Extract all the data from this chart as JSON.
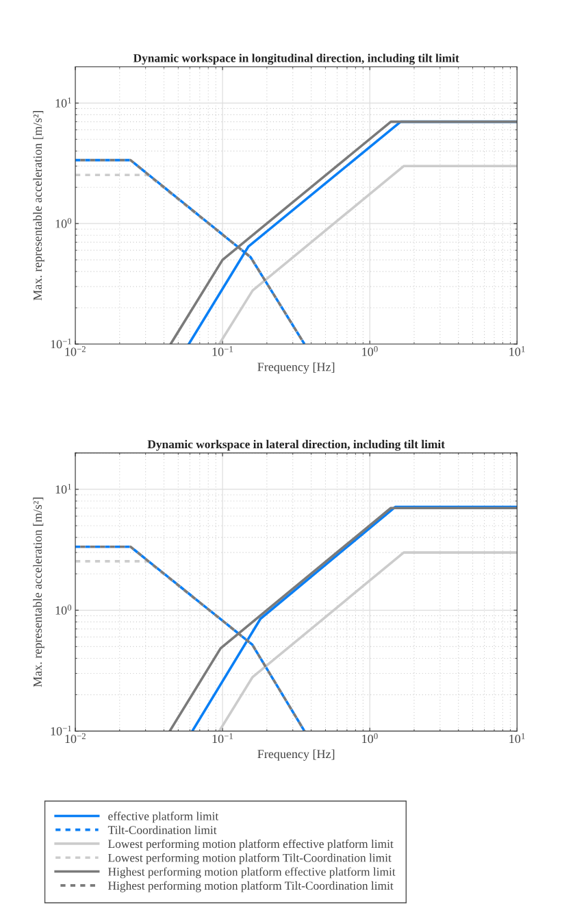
{
  "chart_data": [
    {
      "type": "line",
      "title": "Dynamic workspace in longitudinal direction, including tilt limit",
      "xlabel": "Frequency [Hz]",
      "ylabel": "Max. representable acceleration [m/s²]",
      "log": "xy",
      "grid": true,
      "xlim": [
        0.01,
        10
      ],
      "ylim": [
        0.1,
        20
      ],
      "xticks": [
        {
          "value": 0.01,
          "label": "10$^{−2}$"
        },
        {
          "value": 0.1,
          "label": "10$^{−1}$"
        },
        {
          "value": 1,
          "label": "10$^{0}$"
        },
        {
          "value": 10,
          "label": "10$^{1}$"
        }
      ],
      "yticks": [
        {
          "value": 0.1,
          "label": "10$^{−1}$"
        },
        {
          "value": 1,
          "label": "10$^{0}$"
        },
        {
          "value": 10,
          "label": "10$^{1}$"
        }
      ],
      "series": [
        {
          "color": "#0a7ff5",
          "line_style": "solid",
          "x": [
            0.059,
            0.15,
            1.62,
            10
          ],
          "values": [
            0.1,
            0.646,
            7,
            7
          ]
        },
        {
          "color": "#0a7ff5",
          "line_style": "dashed",
          "x": [
            0.01,
            0.0237,
            0.155,
            0.36
          ],
          "values": [
            3.36,
            3.36,
            0.526,
            0.1
          ]
        },
        {
          "color": "#cccccc",
          "line_style": "solid",
          "x": [
            0.095,
            0.16,
            1.7,
            10
          ],
          "values": [
            0.1,
            0.278,
            3,
            3
          ]
        },
        {
          "color": "#cccccc",
          "line_style": "dashed",
          "x": [
            0.01,
            0.031,
            0.155,
            0.36
          ],
          "values": [
            2.53,
            2.53,
            0.526,
            0.1
          ]
        },
        {
          "color": "#7a7a7a",
          "line_style": "solid",
          "x": [
            0.0444,
            0.1,
            1.39,
            10
          ],
          "values": [
            0.1,
            0.5,
            7,
            7
          ]
        },
        {
          "color": "#7a7a7a",
          "line_style": "dashed",
          "x": [
            0.01,
            0.0237,
            0.155,
            0.36
          ],
          "values": [
            3.36,
            3.36,
            0.526,
            0.1
          ]
        }
      ]
    },
    {
      "type": "line",
      "title": "Dynamic workspace in lateral direction, including tilt limit",
      "xlabel": "Frequency [Hz]",
      "ylabel": "Max. representable acceleration [m/s²]",
      "log": "xy",
      "grid": true,
      "legend": "bottom",
      "xlim": [
        0.01,
        10
      ],
      "ylim": [
        0.1,
        20
      ],
      "xticks": [
        {
          "value": 0.01,
          "label": "10$^{−2}$"
        },
        {
          "value": 0.1,
          "label": "10$^{−1}$"
        },
        {
          "value": 1,
          "label": "10$^{0}$"
        },
        {
          "value": 10,
          "label": "10$^{1}$"
        }
      ],
      "yticks": [
        {
          "value": 0.1,
          "label": "10$^{−1}$"
        },
        {
          "value": 1,
          "label": "10$^{0}$"
        },
        {
          "value": 10,
          "label": "10$^{1}$"
        }
      ],
      "series": [
        {
          "name": "effective platform limit",
          "color": "#0a7ff5",
          "line_style": "solid",
          "x": [
            0.0623,
            0.181,
            1.49,
            10
          ],
          "values": [
            0.1,
            0.85,
            7.15,
            7.15
          ]
        },
        {
          "name": "Tilt-Coordination limit",
          "color": "#0a7ff5",
          "line_style": "dashed",
          "x": [
            0.01,
            0.0237,
            0.159,
            0.36
          ],
          "values": [
            3.35,
            3.35,
            0.52,
            0.1
          ]
        },
        {
          "name": "Lowest performing motion platform effective platform limit",
          "color": "#cccccc",
          "line_style": "solid",
          "x": [
            0.095,
            0.16,
            1.7,
            10
          ],
          "values": [
            0.1,
            0.28,
            3,
            3
          ]
        },
        {
          "name": "Lowest performing motion platform Tilt-Coordination limit",
          "color": "#cccccc",
          "line_style": "dashed",
          "x": [
            0.01,
            0.031,
            0.159,
            0.36
          ],
          "values": [
            2.54,
            2.54,
            0.52,
            0.1
          ]
        },
        {
          "name": "Highest performing motion platform effective platform limit",
          "color": "#7a7a7a",
          "line_style": "solid",
          "x": [
            0.0438,
            0.097,
            1.39,
            10
          ],
          "values": [
            0.1,
            0.484,
            7,
            7
          ]
        },
        {
          "name": "Highest performing motion platform Tilt-Coordination limit",
          "color": "#7a7a7a",
          "line_style": "dashed",
          "x": [
            0.01,
            0.0237,
            0.159,
            0.36
          ],
          "values": [
            3.35,
            3.35,
            0.52,
            0.1
          ]
        }
      ]
    }
  ]
}
